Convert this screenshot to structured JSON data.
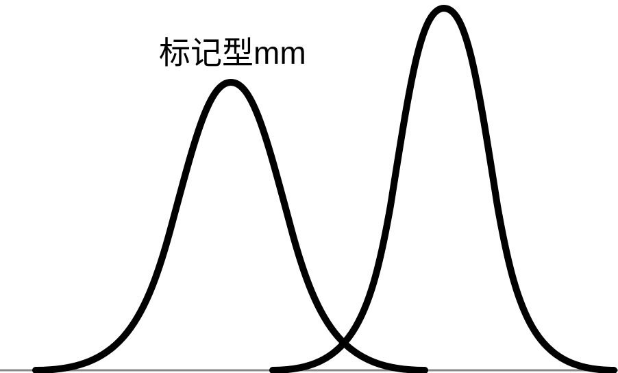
{
  "label": "标记型mm"
}
